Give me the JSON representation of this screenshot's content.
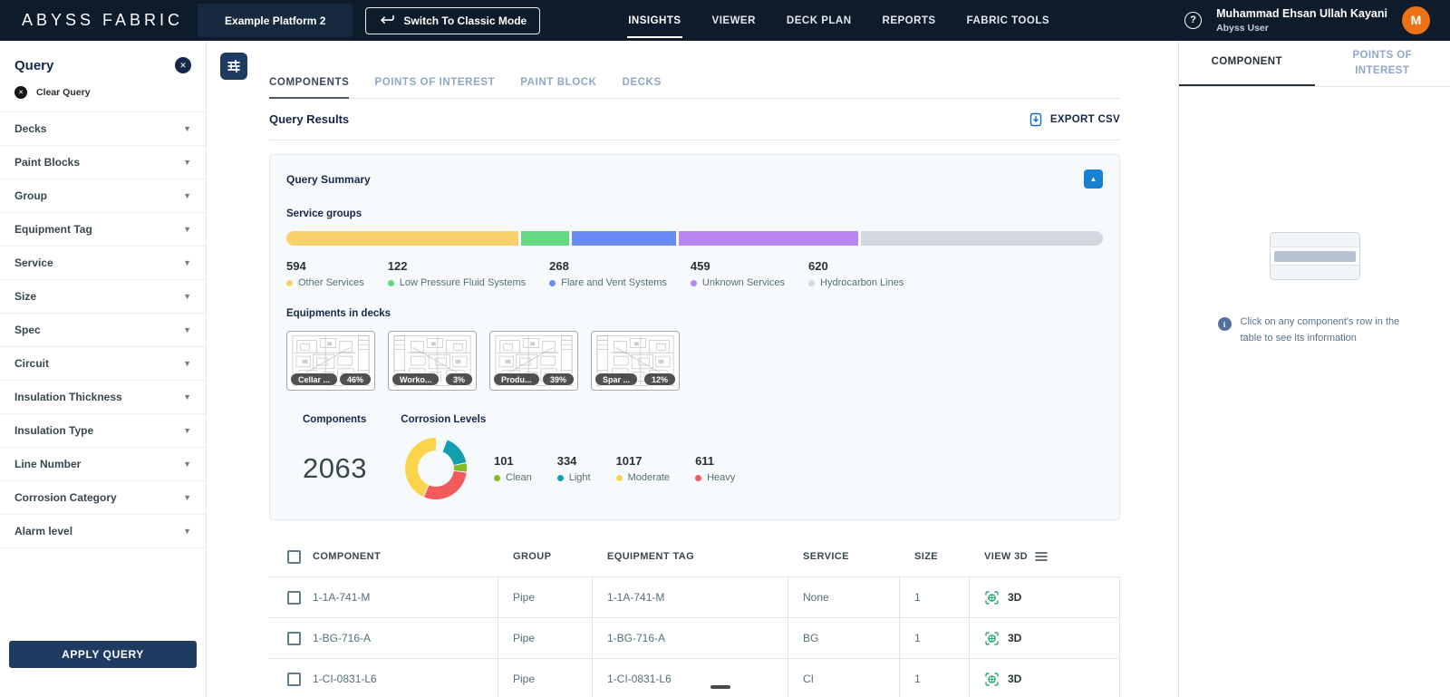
{
  "topbar": {
    "logo": "ABYSS FABRIC",
    "platform_button": "Example Platform 2",
    "switch_button": "Switch To Classic Mode",
    "nav": [
      {
        "label": "INSIGHTS",
        "active": true
      },
      {
        "label": "VIEWER",
        "active": false
      },
      {
        "label": "DECK PLAN",
        "active": false
      },
      {
        "label": "REPORTS",
        "active": false
      },
      {
        "label": "FABRIC TOOLS",
        "active": false
      }
    ],
    "user": {
      "name": "Muhammad Ehsan Ullah Kayani",
      "role": "Abyss User",
      "avatar_initial": "M"
    }
  },
  "sidebar": {
    "title": "Query",
    "clear_button": "Clear Query",
    "filters": [
      "Decks",
      "Paint Blocks",
      "Group",
      "Equipment Tag",
      "Service",
      "Size",
      "Spec",
      "Circuit",
      "Insulation Thickness",
      "Insulation Type",
      "Line Number",
      "Corrosion Category",
      "Alarm level"
    ],
    "apply_button": "APPLY QUERY"
  },
  "main": {
    "tabs": [
      {
        "label": "COMPONENTS",
        "active": true
      },
      {
        "label": "POINTS OF INTEREST",
        "active": false
      },
      {
        "label": "PAINT BLOCK",
        "active": false
      },
      {
        "label": "DECKS",
        "active": false
      }
    ],
    "results_title": "Query Results",
    "export_button": "EXPORT CSV",
    "summary": {
      "title": "Query Summary",
      "service_groups_label": "Service groups",
      "equipments_label": "Equipments in decks",
      "components_label": "Components",
      "components_total": "2063",
      "corrosion_label": "Corrosion Levels",
      "decks": [
        {
          "name": "Cellar ...",
          "coverage": "46%"
        },
        {
          "name": "Worko...",
          "coverage": "3%"
        },
        {
          "name": "Produ...",
          "coverage": "39%"
        },
        {
          "name": "Spar ...",
          "coverage": "12%"
        }
      ]
    }
  },
  "chart_data": [
    {
      "type": "bar",
      "variant": "horizontal-stacked",
      "title": "Service groups",
      "total": 2063,
      "series": [
        {
          "name": "Other Services",
          "value": 594,
          "color": "#F7D26A"
        },
        {
          "name": "Low Pressure Fluid Systems",
          "value": 122,
          "color": "#63D983"
        },
        {
          "name": "Flare and Vent Systems",
          "value": 268,
          "color": "#6A8BF5"
        },
        {
          "name": "Unknown Services",
          "value": 459,
          "color": "#BB86F1"
        },
        {
          "name": "Hydrocarbon Lines",
          "value": 620,
          "color": "#D3D8DE"
        }
      ]
    },
    {
      "type": "pie",
      "variant": "donut",
      "title": "Corrosion Levels",
      "total": 2063,
      "start_angle_deg": 20,
      "clockwise_order": [
        "Light",
        "Clean",
        "Heavy",
        "Moderate"
      ],
      "series": [
        {
          "name": "Clean",
          "value": 101,
          "color": "#84BB26"
        },
        {
          "name": "Light",
          "value": 334,
          "color": "#12A0B0"
        },
        {
          "name": "Moderate",
          "value": 1017,
          "color": "#FCD449"
        },
        {
          "name": "Heavy",
          "value": 611,
          "color": "#F15B5B"
        }
      ]
    }
  ],
  "table": {
    "columns": [
      "COMPONENT",
      "GROUP",
      "EQUIPMENT TAG",
      "SERVICE",
      "SIZE",
      "VIEW 3D"
    ],
    "rows": [
      {
        "component": "1-1A-741-M",
        "group": "Pipe",
        "equipment_tag": "1-1A-741-M",
        "service": "None",
        "size": "1",
        "view_label": "3D"
      },
      {
        "component": "1-BG-716-A",
        "group": "Pipe",
        "equipment_tag": "1-BG-716-A",
        "service": "BG",
        "size": "1",
        "view_label": "3D"
      },
      {
        "component": "1-CI-0831-L6",
        "group": "Pipe",
        "equipment_tag": "1-CI-0831-L6",
        "service": "CI",
        "size": "1",
        "view_label": "3D"
      }
    ]
  },
  "right_panel": {
    "tabs": [
      {
        "label": "COMPONENT",
        "active": true
      },
      {
        "label": "POINTS OF INTEREST",
        "active": false
      }
    ],
    "info_text": "Click on any component's row in the table to see its information"
  },
  "colors": {
    "topbar_bg": "#0E1B2B",
    "accent_navy": "#1F3B61",
    "collapse_button_blue": "#1981D2",
    "avatar_orange": "#ED7117",
    "view3d_green": "#23A96E",
    "export_icon_blue": "#1467C0"
  }
}
